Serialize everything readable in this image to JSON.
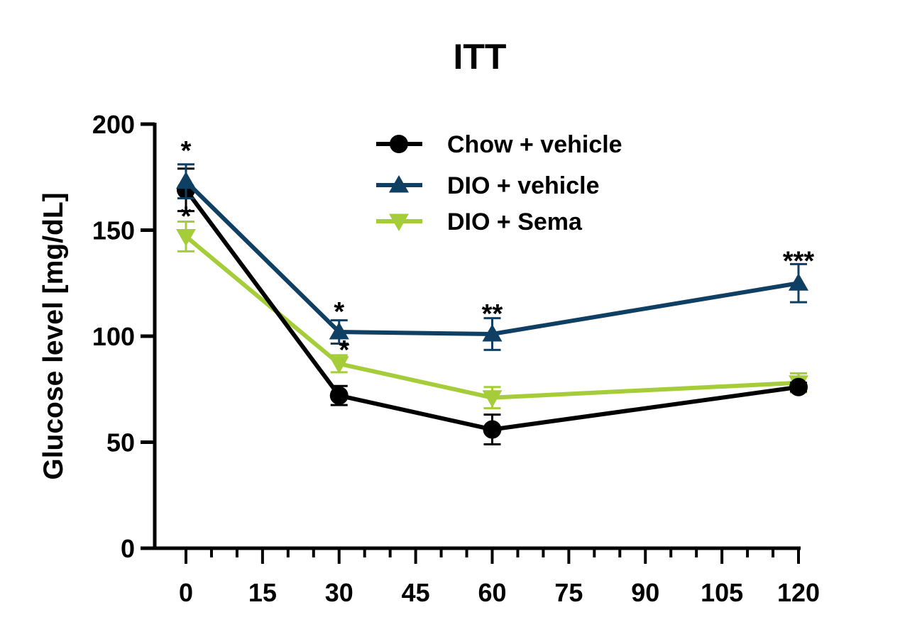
{
  "chart_data": {
    "type": "line",
    "title": "ITT",
    "xlabel": "",
    "ylabel": "Glucose level [mg/dL]",
    "xlim": [
      0,
      120
    ],
    "ylim": [
      0,
      200
    ],
    "xticks": [
      0,
      15,
      30,
      45,
      60,
      75,
      90,
      105,
      120
    ],
    "yticks": [
      0,
      50,
      100,
      150,
      200
    ],
    "x": [
      0,
      30,
      60,
      120
    ],
    "grid": false,
    "legend_position": "top-center",
    "series": [
      {
        "name": "Chow + vehicle",
        "color": "#000000",
        "marker": "circle",
        "values": [
          169,
          72,
          56,
          76
        ],
        "errors": [
          10,
          4.5,
          7,
          2
        ]
      },
      {
        "name": "DIO + vehicle",
        "color": "#0f3f63",
        "marker": "triangle-up",
        "values": [
          173,
          102,
          101,
          125
        ],
        "errors": [
          8,
          5.5,
          7.5,
          9
        ]
      },
      {
        "name": "DIO + Sema",
        "color": "#a5cd39",
        "marker": "triangle-down",
        "values": [
          147,
          87,
          71,
          78
        ],
        "errors": [
          7,
          4,
          5,
          4.5
        ]
      }
    ],
    "annotations": [
      {
        "x": 0,
        "y": 190,
        "text": "*"
      },
      {
        "x": 0,
        "y": 159,
        "text": "*"
      },
      {
        "x": 30,
        "y": 114,
        "text": "*"
      },
      {
        "x": 31,
        "y": 96,
        "text": "*"
      },
      {
        "x": 60,
        "y": 113,
        "text": "**"
      },
      {
        "x": 120,
        "y": 138,
        "text": "***"
      }
    ]
  }
}
